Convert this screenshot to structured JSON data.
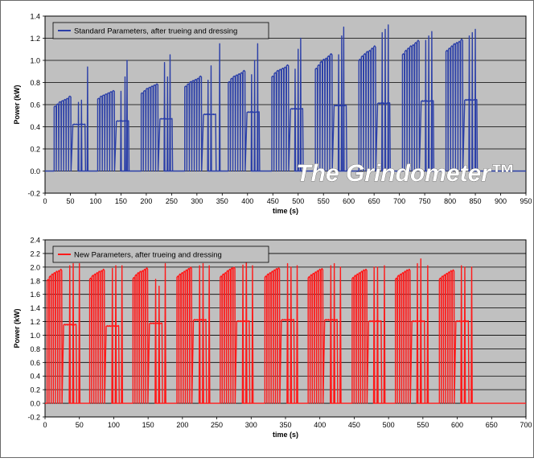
{
  "watermark": "The Grindometer™",
  "colors": {
    "plot_bg": "#c0c0c0",
    "grid": "#000000",
    "series_top": "#2b3fa8",
    "series_bottom": "#ff1a1a",
    "watermark": "#ffffff"
  },
  "chart_data": [
    {
      "type": "line",
      "title": "",
      "xlabel": "time (s)",
      "ylabel": "Power (kW)",
      "xlim": [
        0,
        950
      ],
      "ylim": [
        -0.2,
        1.4
      ],
      "xticks": [
        0,
        50,
        100,
        150,
        200,
        250,
        300,
        350,
        400,
        450,
        500,
        550,
        600,
        650,
        700,
        750,
        800,
        850,
        900,
        950
      ],
      "yticks": [
        -0.2,
        0.0,
        0.2,
        0.4,
        0.6,
        0.8,
        1.0,
        1.2,
        1.4
      ],
      "ytick_labels": [
        "-0.2",
        "0.0",
        "0.2",
        "0.4",
        "0.6",
        "0.8",
        "1.0",
        "1.2",
        "1.4"
      ],
      "grid": "horizontal",
      "legend": "top-left",
      "series": [
        {
          "name": "Standard Parameters, after trueing and dressing",
          "baseline": 0.0,
          "bursts": [
            {
              "start": 18,
              "end": 52,
              "levels": [
                0.58,
                0.6,
                0.62,
                0.63,
                0.64,
                0.65,
                0.67
              ],
              "low_start": 55,
              "low_end": 80,
              "low": 0.42,
              "spikes": [
                [
                  66,
                  0.62
                ],
                [
                  72,
                  0.64
                ],
                [
                  84,
                  0.94
                ]
              ]
            },
            {
              "start": 104,
              "end": 138,
              "levels": [
                0.65,
                0.67,
                0.68,
                0.69,
                0.7,
                0.71,
                0.72
              ],
              "low_start": 141,
              "low_end": 166,
              "low": 0.45,
              "spikes": [
                [
                  150,
                  0.72
                ],
                [
                  158,
                  0.85
                ],
                [
                  162,
                  1.0
                ]
              ]
            },
            {
              "start": 190,
              "end": 224,
              "levels": [
                0.7,
                0.72,
                0.74,
                0.75,
                0.76,
                0.77,
                0.78
              ],
              "low_start": 227,
              "low_end": 252,
              "low": 0.47,
              "spikes": [
                [
                  236,
                  0.98
                ],
                [
                  242,
                  0.85
                ],
                [
                  247,
                  1.05
                ]
              ]
            },
            {
              "start": 276,
              "end": 310,
              "levels": [
                0.76,
                0.78,
                0.8,
                0.81,
                0.82,
                0.83,
                0.85
              ],
              "low_start": 313,
              "low_end": 338,
              "low": 0.51,
              "spikes": [
                [
                  322,
                  0.82
                ],
                [
                  328,
                  0.95
                ],
                [
                  345,
                  1.15
                ]
              ]
            },
            {
              "start": 362,
              "end": 396,
              "levels": [
                0.8,
                0.83,
                0.85,
                0.86,
                0.87,
                0.88,
                0.9
              ],
              "low_start": 399,
              "low_end": 424,
              "low": 0.53,
              "spikes": [
                [
                  408,
                  0.87
                ],
                [
                  414,
                  1.0
                ],
                [
                  420,
                  1.15
                ]
              ]
            },
            {
              "start": 448,
              "end": 482,
              "levels": [
                0.85,
                0.88,
                0.9,
                0.91,
                0.92,
                0.93,
                0.95
              ],
              "low_start": 485,
              "low_end": 510,
              "low": 0.56,
              "spikes": [
                [
                  494,
                  0.92
                ],
                [
                  500,
                  1.1
                ],
                [
                  505,
                  1.2
                ]
              ]
            },
            {
              "start": 534,
              "end": 568,
              "levels": [
                0.92,
                0.95,
                0.98,
                1.0,
                1.01,
                1.03,
                1.05
              ],
              "low_start": 571,
              "low_end": 596,
              "low": 0.59,
              "spikes": [
                [
                  580,
                  1.05
                ],
                [
                  586,
                  1.22
                ],
                [
                  590,
                  1.3
                ]
              ]
            },
            {
              "start": 620,
              "end": 654,
              "levels": [
                1.0,
                1.03,
                1.05,
                1.07,
                1.08,
                1.1,
                1.12
              ],
              "low_start": 657,
              "low_end": 682,
              "low": 0.61,
              "spikes": [
                [
                  666,
                  1.25
                ],
                [
                  672,
                  1.28
                ],
                [
                  678,
                  1.32
                ]
              ]
            },
            {
              "start": 706,
              "end": 740,
              "levels": [
                1.05,
                1.08,
                1.1,
                1.12,
                1.13,
                1.15,
                1.17
              ],
              "low_start": 743,
              "low_end": 768,
              "low": 0.63,
              "spikes": [
                [
                  752,
                  1.18
                ],
                [
                  758,
                  1.22
                ],
                [
                  764,
                  1.26
                ]
              ]
            },
            {
              "start": 792,
              "end": 826,
              "levels": [
                1.08,
                1.1,
                1.12,
                1.14,
                1.15,
                1.16,
                1.18
              ],
              "low_start": 829,
              "low_end": 854,
              "low": 0.64,
              "spikes": [
                [
                  838,
                  1.22
                ],
                [
                  844,
                  1.25
                ],
                [
                  850,
                  1.28
                ]
              ]
            }
          ]
        }
      ]
    },
    {
      "type": "line",
      "title": "",
      "xlabel": "time (s)",
      "ylabel": "Power (kW)",
      "xlim": [
        0,
        700
      ],
      "ylim": [
        -0.2,
        2.4
      ],
      "xticks": [
        0,
        50,
        100,
        150,
        200,
        250,
        300,
        350,
        400,
        450,
        500,
        550,
        600,
        650,
        700
      ],
      "yticks": [
        -0.2,
        0.0,
        0.2,
        0.4,
        0.6,
        0.8,
        1.0,
        1.2,
        1.4,
        1.6,
        1.8,
        2.0,
        2.2,
        2.4
      ],
      "ytick_labels": [
        "-0.2",
        "0.0",
        "0.2",
        "0.4",
        "0.6",
        "0.8",
        "1.0",
        "1.2",
        "1.4",
        "1.6",
        "1.8",
        "2.0",
        "2.2",
        "2.4"
      ],
      "grid": "horizontal",
      "legend": "top-left",
      "series": [
        {
          "name": "New Parameters, after trueing and dressing",
          "baseline": 0.0,
          "bursts": [
            {
              "start": 3,
              "end": 25,
              "levels": [
                1.8,
                1.85,
                1.88,
                1.9,
                1.92,
                1.93,
                1.95
              ],
              "low_start": 27,
              "low_end": 46,
              "low": 1.15,
              "spikes": [
                [
                  36,
                  2.02
                ],
                [
                  41,
                  2.05
                ],
                [
                  50,
                  2.05
                ]
              ]
            },
            {
              "start": 65,
              "end": 87,
              "levels": [
                1.82,
                1.86,
                1.88,
                1.9,
                1.92,
                1.93,
                1.95
              ],
              "low_start": 89,
              "low_end": 108,
              "low": 1.13,
              "spikes": [
                [
                  98,
                  1.98
                ],
                [
                  103,
                  2.02
                ],
                [
                  112,
                  2.02
                ]
              ]
            },
            {
              "start": 128,
              "end": 150,
              "levels": [
                1.83,
                1.87,
                1.9,
                1.92,
                1.93,
                1.95,
                1.97
              ],
              "low_start": 152,
              "low_end": 171,
              "low": 1.17,
              "spikes": [
                [
                  161,
                  1.82
                ],
                [
                  166,
                  1.72
                ],
                [
                  175,
                  2.05
                ]
              ]
            },
            {
              "start": 192,
              "end": 214,
              "levels": [
                1.85,
                1.88,
                1.9,
                1.92,
                1.94,
                1.96,
                1.98
              ],
              "low_start": 216,
              "low_end": 235,
              "low": 1.22,
              "spikes": [
                [
                  225,
                  2.02
                ],
                [
                  230,
                  2.05
                ],
                [
                  239,
                  2.02
                ]
              ]
            },
            {
              "start": 255,
              "end": 277,
              "levels": [
                1.85,
                1.88,
                1.9,
                1.93,
                1.95,
                1.97,
                1.98
              ],
              "low_start": 279,
              "low_end": 298,
              "low": 1.2,
              "spikes": [
                [
                  288,
                  2.03
                ],
                [
                  293,
                  2.28
                ],
                [
                  302,
                  2.02
                ]
              ]
            },
            {
              "start": 320,
              "end": 342,
              "levels": [
                1.85,
                1.88,
                1.9,
                1.92,
                1.94,
                1.96,
                1.97
              ],
              "low_start": 344,
              "low_end": 363,
              "low": 1.22,
              "spikes": [
                [
                  353,
                  2.05
                ],
                [
                  358,
                  2.0
                ],
                [
                  367,
                  2.02
                ]
              ]
            },
            {
              "start": 383,
              "end": 405,
              "levels": [
                1.84,
                1.87,
                1.89,
                1.91,
                1.93,
                1.95,
                1.96
              ],
              "low_start": 407,
              "low_end": 426,
              "low": 1.22,
              "spikes": [
                [
                  416,
                  2.02
                ],
                [
                  421,
                  2.05
                ],
                [
                  430,
                  2.0
                ]
              ]
            },
            {
              "start": 447,
              "end": 469,
              "levels": [
                1.83,
                1.86,
                1.88,
                1.9,
                1.92,
                1.94,
                1.95
              ],
              "low_start": 471,
              "low_end": 490,
              "low": 1.2,
              "spikes": [
                [
                  479,
                  2.0
                ],
                [
                  484,
                  2.0
                ],
                [
                  494,
                  2.02
                ]
              ]
            },
            {
              "start": 510,
              "end": 532,
              "levels": [
                1.82,
                1.86,
                1.88,
                1.9,
                1.92,
                1.94,
                1.95
              ],
              "low_start": 534,
              "low_end": 553,
              "low": 1.2,
              "spikes": [
                [
                  542,
                  2.05
                ],
                [
                  547,
                  2.12
                ],
                [
                  557,
                  2.02
                ]
              ]
            },
            {
              "start": 574,
              "end": 596,
              "levels": [
                1.82,
                1.85,
                1.87,
                1.89,
                1.91,
                1.93,
                1.94
              ],
              "low_start": 598,
              "low_end": 617,
              "low": 1.2,
              "spikes": [
                [
                  606,
                  2.02
                ],
                [
                  611,
                  2.0
                ],
                [
                  621,
                  2.0
                ]
              ]
            }
          ]
        }
      ]
    }
  ]
}
